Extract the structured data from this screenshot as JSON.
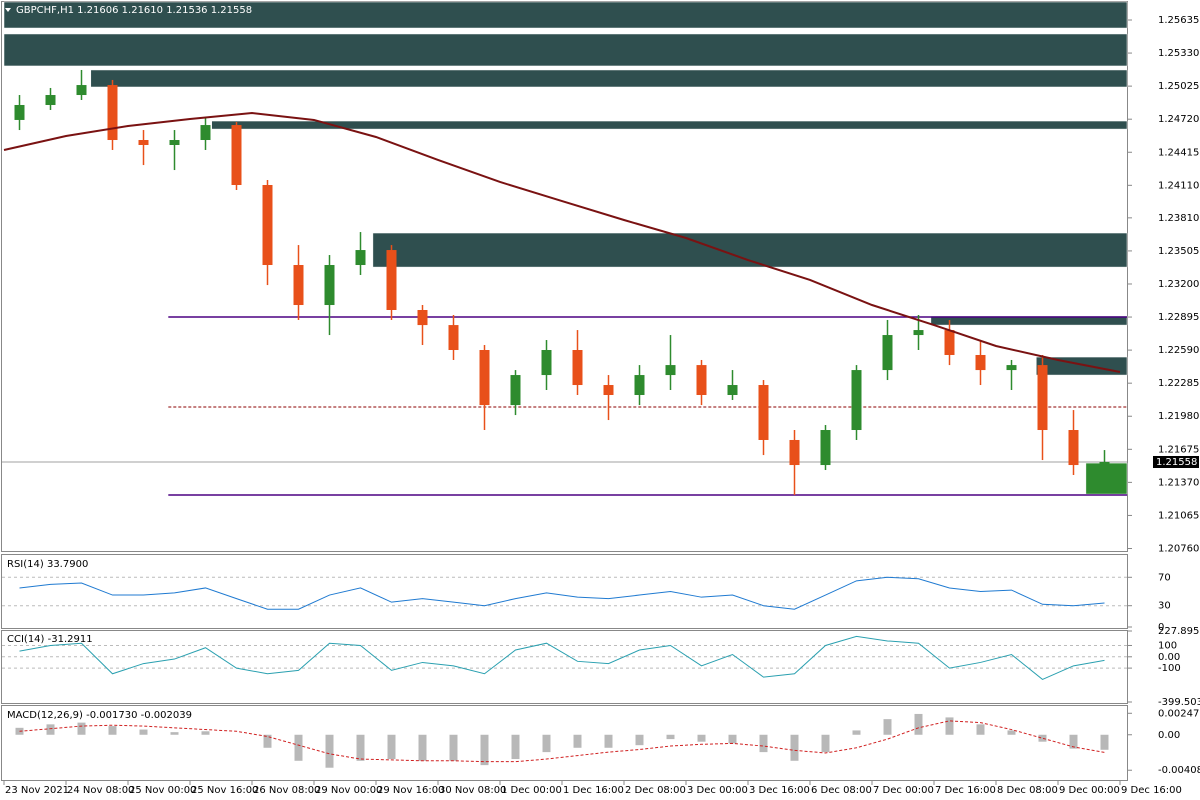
{
  "chart_data": [
    {
      "type": "candlestick",
      "title": "GBPCHF,H1  1.21606 1.21610 1.21536 1.21558",
      "xlim": [
        0,
        36
      ],
      "xticks": [
        {
          "value": 0,
          "label": "23 Nov 2021"
        },
        {
          "value": 2,
          "label": "24 Nov 08:00"
        },
        {
          "value": 4,
          "label": "25 Nov 00:00"
        },
        {
          "value": 6,
          "label": "25 Nov 16:00"
        },
        {
          "value": 8,
          "label": "26 Nov 08:00"
        },
        {
          "value": 10,
          "label": "29 Nov 00:00"
        },
        {
          "value": 12,
          "label": "29 Nov 16:00"
        },
        {
          "value": 14,
          "label": "30 Nov 08:00"
        },
        {
          "value": 16,
          "label": "1 Dec 00:00"
        },
        {
          "value": 18,
          "label": "1 Dec 16:00"
        },
        {
          "value": 20,
          "label": "2 Dec 08:00"
        },
        {
          "value": 22,
          "label": "3 Dec 00:00"
        },
        {
          "value": 24,
          "label": "3 Dec 16:00"
        },
        {
          "value": 26,
          "label": "6 Dec 08:00"
        },
        {
          "value": 28,
          "label": "7 Dec 00:00"
        },
        {
          "value": 30,
          "label": "7 Dec 16:00"
        },
        {
          "value": 32,
          "label": "8 Dec 08:00"
        },
        {
          "value": 34,
          "label": "9 Dec 00:00"
        },
        {
          "value": 36,
          "label": "9 Dec 16:00"
        }
      ],
      "ylim": [
        1.20737,
        1.25801
      ],
      "yticks": [
        1.25635,
        {
          "value": 1.2533,
          "label": "1.25330"
        },
        1.25025,
        {
          "value": 1.2472,
          "label": "1.24720"
        },
        1.24415,
        {
          "value": 1.2411,
          "label": "1.24110"
        },
        {
          "value": 1.2381,
          "label": "1.23810"
        },
        1.23505,
        {
          "value": 1.232,
          "label": "1.23200"
        },
        1.22895,
        {
          "value": 1.2259,
          "label": "1.22590"
        },
        1.22285,
        {
          "value": 1.2198,
          "label": "1.21980"
        },
        1.21675,
        {
          "value": 1.2137,
          "label": "1.21370"
        },
        1.21065,
        {
          "value": 1.2076,
          "label": "1.20760"
        }
      ],
      "up_color": "#2e8b2e",
      "down_color": "#e8501a",
      "open": [
        1.24713,
        1.24851,
        1.24943,
        1.25035,
        1.24528,
        1.24482,
        1.24528,
        1.24666,
        1.24113,
        1.23375,
        1.23006,
        1.23375,
        1.23513,
        1.2296,
        1.22821,
        1.22591,
        1.22083,
        1.2236,
        1.22591,
        1.22268,
        1.22176,
        1.2236,
        1.22452,
        1.22176,
        1.22268,
        1.21761,
        1.2153,
        1.21853,
        1.22406,
        1.22729,
        1.22775,
        1.22545,
        1.22406,
        1.22452,
        1.21853,
        1.2153
      ],
      "high": [
        1.24943,
        1.25008,
        1.25174,
        1.25082,
        1.2462,
        1.2462,
        1.24731,
        1.24694,
        1.24159,
        1.23559,
        1.23467,
        1.23679,
        1.23559,
        1.23006,
        1.22914,
        1.22637,
        1.22406,
        1.22683,
        1.22775,
        1.2236,
        1.22452,
        1.22729,
        1.22499,
        1.22406,
        1.22314,
        1.21853,
        1.21899,
        1.22452,
        1.22868,
        1.22914,
        1.22868,
        1.22683,
        1.22499,
        1.22545,
        1.22037,
        1.21668
      ],
      "low": [
        1.2462,
        1.24805,
        1.24897,
        1.24436,
        1.24297,
        1.24251,
        1.24436,
        1.24067,
        1.2319,
        1.22868,
        1.22729,
        1.23283,
        1.22868,
        1.22637,
        1.22499,
        1.21853,
        1.21991,
        1.22222,
        1.22176,
        1.21945,
        1.22083,
        1.22222,
        1.22083,
        1.2213,
        1.21622,
        1.21253,
        1.21484,
        1.21761,
        1.22314,
        1.22591,
        1.22452,
        1.22268,
        1.22222,
        1.21576,
        1.21438,
        1.21484
      ],
      "close": [
        1.24851,
        1.24943,
        1.25035,
        1.24528,
        1.24482,
        1.24528,
        1.24666,
        1.24113,
        1.23375,
        1.23006,
        1.23375,
        1.23513,
        1.2296,
        1.22821,
        1.22591,
        1.22083,
        1.2236,
        1.22591,
        1.22268,
        1.22176,
        1.2236,
        1.22452,
        1.22176,
        1.22268,
        1.21761,
        1.2153,
        1.21853,
        1.22406,
        1.22729,
        1.22775,
        1.22545,
        1.22406,
        1.22452,
        1.21853,
        1.2153,
        1.21558
      ],
      "ma": {
        "color": "#7a1212",
        "x": [
          0,
          2,
          4,
          6,
          8,
          10,
          12,
          14,
          16,
          18,
          20,
          22,
          24,
          26,
          28,
          30,
          32,
          34,
          36
        ],
        "values": [
          1.24436,
          1.24565,
          1.24657,
          1.24722,
          1.24777,
          1.24713,
          1.24556,
          1.24344,
          1.24141,
          1.23965,
          1.2379,
          1.23624,
          1.23421,
          1.23237,
          1.23006,
          1.22821,
          1.22628,
          1.22499,
          1.22388
        ]
      },
      "zones": [
        {
          "start": 0,
          "top": 1.25801,
          "bottom": 1.25561,
          "color": "#2f4f4f"
        },
        {
          "start": 0,
          "top": 1.25506,
          "bottom": 1.25211,
          "color": "#2f4f4f"
        },
        {
          "start": 2.8,
          "top": 1.25174,
          "bottom": 1.25017,
          "color": "#2f4f4f"
        },
        {
          "start": 6.7,
          "top": 1.24703,
          "bottom": 1.24629,
          "color": "#2f4f4f"
        },
        {
          "start": 11.9,
          "top": 1.2367,
          "bottom": 1.23356,
          "color": "#2f4f4f"
        },
        {
          "start": 29.9,
          "top": 1.22904,
          "bottom": 1.22821,
          "color": "#2f4f4f"
        },
        {
          "start": 33.3,
          "top": 1.22526,
          "bottom": 1.2236,
          "color": "#2f4f4f"
        },
        {
          "start": 34.9,
          "top": 1.21548,
          "bottom": 1.21262,
          "color": "#2e8b2e"
        }
      ],
      "lines": [
        {
          "start": 5.3,
          "value": 1.22895,
          "color": "#4b0082",
          "style": "solid"
        },
        {
          "start": 5.3,
          "value": 1.21253,
          "color": "#4b0082",
          "style": "solid"
        },
        {
          "start": 5.3,
          "value": 1.22065,
          "color": "#8b0000",
          "style": "dashed"
        }
      ],
      "current_price": 1.21558,
      "current_color": "#a0a0a0"
    },
    {
      "type": "line",
      "title": "RSI(14) 33.7900",
      "color": "#1f7ad1",
      "ylim": [
        0,
        100
      ],
      "yticks": [
        70,
        30,
        0
      ],
      "values": [
        55,
        60,
        62,
        45,
        45,
        48,
        55,
        40,
        25,
        25,
        45,
        55,
        35,
        40,
        35,
        30,
        40,
        48,
        42,
        40,
        45,
        50,
        42,
        45,
        30,
        25,
        45,
        65,
        70,
        68,
        55,
        50,
        52,
        32,
        30,
        33.79
      ]
    },
    {
      "type": "line",
      "title": "CCI(14) -31.2911",
      "color": "#2aa0b0",
      "ylim": [
        -399.5038,
        227.8956
      ],
      "yticks": [
        227.8956,
        100,
        {
          "value": 0,
          "label": "0.00"
        },
        -100,
        -399.5038
      ],
      "values": [
        50,
        100,
        120,
        -150,
        -60,
        -20,
        80,
        -100,
        -150,
        -120,
        120,
        100,
        -120,
        -50,
        -80,
        -150,
        60,
        120,
        -40,
        -60,
        60,
        100,
        -80,
        20,
        -180,
        -150,
        100,
        180,
        140,
        120,
        -100,
        -50,
        20,
        -200,
        -80,
        -31.2911
      ]
    },
    {
      "type": "macd",
      "title": "MACD(12,26,9) -0.001730 -0.002039",
      "ylim": [
        -0.0051,
        0.0032
      ],
      "yticks": [
        0.002476,
        {
          "value": 0,
          "label": "0.00"
        },
        -0.004089
      ],
      "histogram": {
        "color": "#b8b8b8",
        "values": [
          0.0008,
          0.0012,
          0.0014,
          0.001,
          0.0006,
          0.0003,
          0.0004,
          0,
          -0.0015,
          -0.003,
          -0.0038,
          -0.003,
          -0.0028,
          -0.003,
          -0.003,
          -0.0035,
          -0.0028,
          -0.002,
          -0.0015,
          -0.0015,
          -0.0012,
          -0.0005,
          -0.0008,
          -0.001,
          -0.002,
          -0.003,
          -0.002,
          0.0005,
          0.0018,
          0.0024,
          0.002,
          0.0012,
          0.0005,
          -0.0008,
          -0.0016,
          -0.00173
        ]
      },
      "signal": {
        "color": "#d02020",
        "values": [
          0.0004,
          0.0007,
          0.001,
          0.0011,
          0.001,
          0.0008,
          0.0006,
          0.0004,
          -0.0002,
          -0.0012,
          -0.0022,
          -0.0028,
          -0.0029,
          -0.003,
          -0.003,
          -0.0031,
          -0.0031,
          -0.0028,
          -0.0024,
          -0.002,
          -0.0017,
          -0.0013,
          -0.0011,
          -0.001,
          -0.0013,
          -0.0018,
          -0.0021,
          -0.0015,
          -0.0005,
          0.0008,
          0.0016,
          0.0014,
          0.0006,
          -0.0004,
          -0.0014,
          -0.002039
        ]
      }
    }
  ]
}
